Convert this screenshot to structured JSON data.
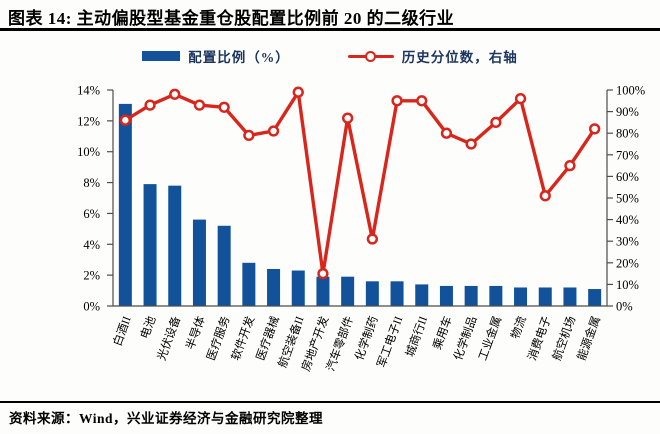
{
  "header": {
    "title": "图表 14:  主动偏股型基金重仓股配置比例前 20 的二级行业"
  },
  "legend": [
    {
      "label": "配置比例（%）",
      "swatch": "bar-swatch",
      "color": "#12529B"
    },
    {
      "label": "历史分位数，右轴",
      "swatch": "line-swatch",
      "color": "#D9261C"
    }
  ],
  "footer": {
    "source": "资料来源：Wind，兴业证券经济与金融研究院整理"
  },
  "colors": {
    "bar": "#12529B",
    "line": "#D9261C",
    "marker_fill": "#ffffff",
    "axis": "#4d4d4d",
    "text": "#000000",
    "legend_text": "#1c355e"
  },
  "chart_data": {
    "type": "bar",
    "subtype": "bar+line dual axis",
    "title": "主动偏股型基金重仓股配置比例前 20 的二级行业",
    "grid": false,
    "legend_position": "top",
    "categories": [
      "白酒II",
      "电池",
      "光伏设备",
      "半导体",
      "医疗服务",
      "软件开发",
      "医疗器械",
      "航空装备II",
      "房地产开发",
      "汽车零部件",
      "化学制药",
      "军工电子II",
      "城商行II",
      "乘用车",
      "化学制品",
      "工业金属",
      "物流",
      "消费电子",
      "航空机场",
      "能源金属"
    ],
    "series": [
      {
        "name": "配置比例（%）",
        "type": "bar",
        "axis": "left",
        "color": "#12529B",
        "values": [
          13.1,
          7.9,
          7.8,
          5.6,
          5.2,
          2.8,
          2.4,
          2.3,
          1.9,
          1.9,
          1.6,
          1.6,
          1.4,
          1.3,
          1.3,
          1.3,
          1.2,
          1.2,
          1.2,
          1.1
        ]
      },
      {
        "name": "历史分位数，右轴",
        "type": "line",
        "axis": "right",
        "color": "#D9261C",
        "values": [
          86,
          93,
          98,
          93,
          92,
          79,
          81,
          99,
          15,
          87,
          31,
          95,
          95,
          80,
          75,
          85,
          96,
          51,
          65,
          82
        ]
      }
    ],
    "left_axis": {
      "min": 0,
      "max": 14,
      "step": 2,
      "suffix": "%",
      "tick_labels": [
        "0%",
        "2%",
        "4%",
        "6%",
        "8%",
        "10%",
        "12%",
        "14%"
      ]
    },
    "right_axis": {
      "min": 0,
      "max": 100,
      "step": 10,
      "suffix": "%",
      "tick_labels": [
        "0%",
        "10%",
        "20%",
        "30%",
        "40%",
        "50%",
        "60%",
        "70%",
        "80%",
        "90%",
        "100%"
      ]
    }
  }
}
